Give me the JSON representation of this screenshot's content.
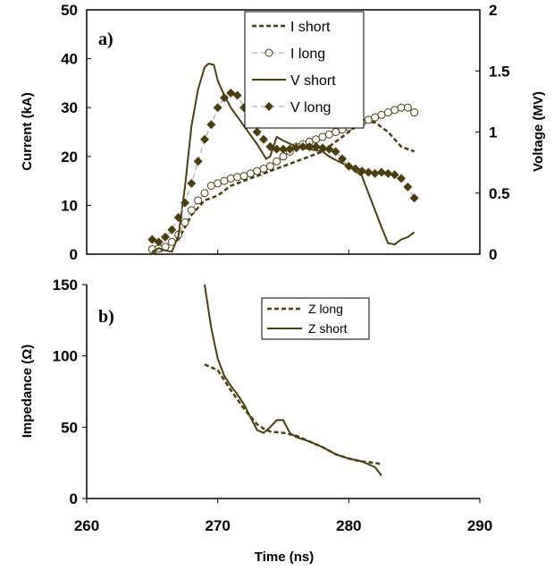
{
  "chart_data": [
    {
      "type": "line",
      "panel_label": "a)",
      "ylabel": "Current (kA)",
      "y2label": "Voltage (MV)",
      "xlim": [
        260,
        290
      ],
      "ylim": [
        0,
        50
      ],
      "y2lim": [
        0,
        2
      ],
      "xticks": [
        260,
        270,
        280,
        290
      ],
      "yticks": [
        "0",
        "10",
        "20",
        "30",
        "40",
        "50"
      ],
      "y2ticks": [
        "0",
        "0.5",
        "1",
        "1.5",
        "2"
      ],
      "grid": false,
      "legend_position": "top-center",
      "series": [
        {
          "name": "I short",
          "axis": "left",
          "style": "dashed",
          "x": [
            265,
            266,
            267,
            268,
            269,
            270,
            271,
            272,
            273,
            274,
            275,
            276,
            277,
            278,
            279,
            280,
            281,
            282,
            283,
            284,
            285
          ],
          "y": [
            0,
            1,
            3,
            8,
            11,
            12,
            14,
            15,
            16,
            17,
            18,
            19,
            20,
            21,
            23,
            25,
            27,
            27,
            25,
            22,
            21
          ]
        },
        {
          "name": "I long",
          "axis": "left",
          "style": "dashed-circle-markers",
          "x": [
            265,
            265.5,
            266,
            266.5,
            267,
            267.5,
            268,
            268.5,
            269,
            269.5,
            270,
            270.5,
            271,
            271.5,
            272,
            272.5,
            273,
            273.5,
            274,
            274.5,
            275,
            275.5,
            276,
            276.5,
            277,
            277.5,
            278,
            278.5,
            279,
            279.5,
            280,
            280.5,
            281,
            281.5,
            282,
            282.5,
            283,
            283.5,
            284,
            284.5,
            285
          ],
          "y": [
            1,
            1.2,
            1.5,
            2.5,
            4,
            6.5,
            9,
            11,
            12.5,
            14,
            14.5,
            15,
            15.5,
            15.8,
            16,
            16.5,
            17,
            17.5,
            18,
            19,
            20,
            21,
            22,
            22.5,
            23,
            23.5,
            24,
            24.5,
            25,
            25.5,
            26,
            27,
            27,
            27.5,
            28,
            28.5,
            29,
            29.5,
            30,
            30,
            29
          ]
        },
        {
          "name": "V short",
          "axis": "right",
          "style": "solid",
          "x": [
            265,
            265.5,
            266,
            266.5,
            267,
            267.5,
            268,
            268.5,
            269,
            269.3,
            269.7,
            270,
            270.5,
            271,
            272,
            273,
            273.7,
            274,
            274.5,
            275,
            276,
            277,
            278,
            278.5,
            279,
            280,
            281,
            281.5,
            282,
            282.5,
            283,
            283.5,
            284,
            284.5,
            285
          ],
          "y": [
            0.02,
            0.05,
            0.03,
            0.02,
            0.15,
            0.55,
            1.05,
            1.35,
            1.53,
            1.56,
            1.55,
            1.42,
            1.3,
            1.2,
            1.05,
            0.9,
            0.78,
            0.8,
            0.96,
            0.93,
            0.88,
            0.86,
            0.84,
            0.8,
            0.77,
            0.72,
            0.64,
            0.5,
            0.36,
            0.22,
            0.09,
            0.08,
            0.12,
            0.14,
            0.18
          ]
        },
        {
          "name": "V long",
          "axis": "right",
          "style": "dashed-diamond-markers",
          "x": [
            265,
            265.5,
            266,
            266.5,
            267,
            267.5,
            268,
            268.5,
            269,
            269.5,
            270,
            270.5,
            271,
            271.5,
            272,
            272.5,
            273,
            273.5,
            274,
            274.5,
            275,
            275.5,
            276,
            276.5,
            277,
            277.5,
            278,
            278.5,
            279,
            279.5,
            280,
            280.5,
            281,
            281.5,
            282,
            282.5,
            283,
            283.5,
            284,
            284.5,
            285
          ],
          "y": [
            0.12,
            0.1,
            0.14,
            0.2,
            0.3,
            0.42,
            0.58,
            0.76,
            0.94,
            1.06,
            1.2,
            1.28,
            1.32,
            1.3,
            1.2,
            1.1,
            1.0,
            0.94,
            0.88,
            0.86,
            0.86,
            0.86,
            0.87,
            0.88,
            0.88,
            0.88,
            0.87,
            0.86,
            0.84,
            0.78,
            0.72,
            0.7,
            0.68,
            0.67,
            0.66,
            0.67,
            0.66,
            0.65,
            0.62,
            0.55,
            0.46
          ]
        }
      ]
    },
    {
      "type": "line",
      "panel_label": "b)",
      "xlabel": "Time (ns)",
      "ylabel": "Impedance (Ω)",
      "xlim": [
        260,
        290
      ],
      "ylim": [
        0,
        150
      ],
      "xticks": [
        "260",
        "270",
        "280",
        "290"
      ],
      "yticks": [
        "0",
        "50",
        "100",
        "150"
      ],
      "grid": false,
      "legend_position": "top-center",
      "series": [
        {
          "name": "Z long",
          "style": "dashed",
          "x": [
            269,
            270,
            271,
            272,
            273,
            273.5,
            274,
            275,
            276,
            277,
            278,
            279,
            280,
            281,
            282,
            282.5
          ],
          "y": [
            94,
            90,
            76,
            63,
            52,
            49,
            47,
            46,
            44,
            40,
            36,
            31,
            28,
            26,
            25,
            24
          ]
        },
        {
          "name": "Z short",
          "style": "solid",
          "x": [
            269,
            269.5,
            270,
            270.5,
            271,
            271.5,
            272,
            272.5,
            273,
            273.5,
            274,
            274.5,
            275,
            275.5,
            276,
            277,
            278,
            279,
            280,
            281,
            282,
            282.5
          ],
          "y": [
            150,
            120,
            98,
            86,
            79,
            73,
            66,
            57,
            48,
            46,
            50,
            55,
            55,
            46,
            43,
            40,
            36,
            31,
            28,
            26,
            22,
            16
          ]
        }
      ]
    }
  ]
}
